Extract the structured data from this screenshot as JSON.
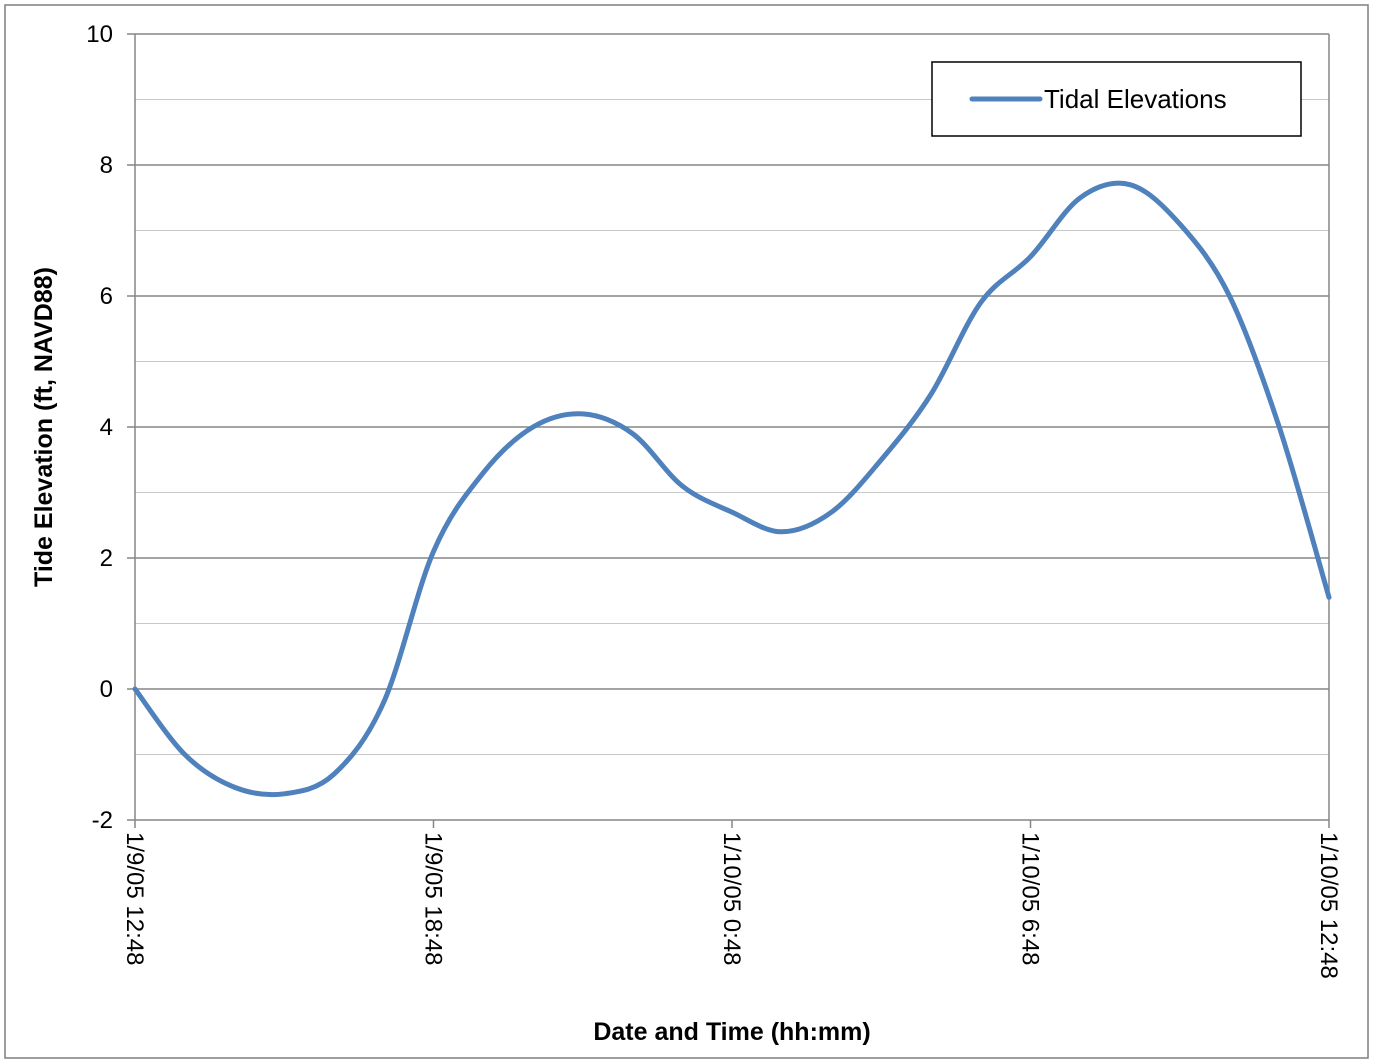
{
  "chart_data": {
    "type": "line",
    "title": "",
    "xlabel": "Date and Time (hh:mm)",
    "ylabel": "Tide Elevation (ft, NAVD88)",
    "ylim": [
      -2,
      10
    ],
    "y_major_step": 2,
    "y_minor_step": 1,
    "y_ticks": [
      "10",
      "8",
      "6",
      "4",
      "2",
      "0",
      "-2"
    ],
    "x_ticks": [
      "1/9/05 12:48",
      "1/9/05 18:48",
      "1/10/05 0:48",
      "1/10/05 6:48",
      "1/10/05 12:48"
    ],
    "grid": true,
    "legend": {
      "position": "top-right",
      "entries": [
        "Tidal Elevations"
      ]
    },
    "series_color": "#4F81BD",
    "series": [
      {
        "name": "Tidal Elevations",
        "x": [
          "1/9/05 12:48",
          "1/9/05 13:48",
          "1/9/05 14:48",
          "1/9/05 15:48",
          "1/9/05 16:48",
          "1/9/05 17:48",
          "1/9/05 18:48",
          "1/9/05 19:48",
          "1/9/05 20:48",
          "1/9/05 21:48",
          "1/9/05 22:48",
          "1/9/05 23:48",
          "1/10/05 0:48",
          "1/10/05 1:48",
          "1/10/05 2:48",
          "1/10/05 3:48",
          "1/10/05 4:48",
          "1/10/05 5:48",
          "1/10/05 6:48",
          "1/10/05 7:48",
          "1/10/05 8:48",
          "1/10/05 9:48",
          "1/10/05 10:48",
          "1/10/05 11:48",
          "1/10/05 12:48"
        ],
        "values": [
          0.0,
          -1.0,
          -1.5,
          -1.6,
          -1.3,
          -0.2,
          2.1,
          3.3,
          4.0,
          4.2,
          3.9,
          3.1,
          2.7,
          2.4,
          2.7,
          3.5,
          4.5,
          5.9,
          6.6,
          7.5,
          7.7,
          7.1,
          6.0,
          4.0,
          1.4
        ]
      }
    ]
  }
}
